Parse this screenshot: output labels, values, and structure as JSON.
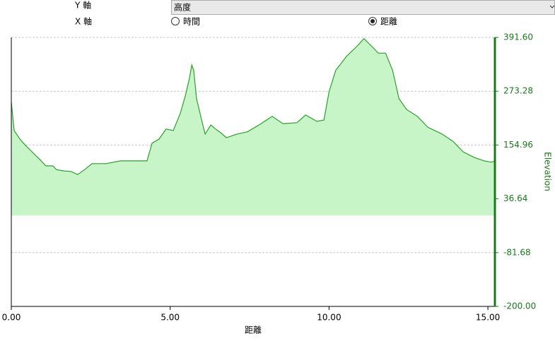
{
  "controls": {
    "y_axis_label": "Y 軸",
    "y_axis_value": "高度",
    "x_axis_label": "X 軸",
    "x_options": [
      {
        "label": "時間",
        "selected": false
      },
      {
        "label": "距離",
        "selected": true
      }
    ]
  },
  "chart_data": {
    "type": "area",
    "xlabel": "距離",
    "y2label": "Elevation",
    "x": [
      0,
      0.09,
      0.27,
      0.42,
      0.65,
      0.87,
      1.09,
      1.31,
      1.42,
      1.65,
      1.87,
      2.09,
      2.31,
      2.54,
      2.98,
      3.43,
      3.87,
      4.27,
      4.43,
      4.65,
      4.87,
      5.1,
      5.32,
      5.48,
      5.61,
      5.68,
      5.74,
      5.83,
      5.99,
      6.1,
      6.28,
      6.43,
      6.59,
      6.77,
      7.1,
      7.43,
      7.77,
      8.21,
      8.55,
      8.99,
      9.26,
      9.62,
      9.84,
      10.0,
      10.21,
      10.55,
      10.89,
      11.1,
      11.33,
      11.55,
      11.78,
      12.0,
      12.2,
      12.44,
      12.78,
      13.11,
      13.56,
      13.9,
      14.22,
      14.56,
      14.89,
      15.11,
      15.22
    ],
    "series": [
      {
        "color": "#2e9e2e",
        "fill": "#c8f5c8",
        "axis": "y2",
        "values": [
          249,
          187,
          168,
          156,
          140,
          125,
          109,
          109,
          101,
          98,
          97,
          90,
          101,
          114,
          114,
          120,
          120,
          120,
          159,
          168,
          190,
          187,
          225,
          264,
          303,
          331,
          319,
          257,
          210,
          179,
          199,
          190,
          182,
          171,
          179,
          184,
          198,
          218,
          202,
          204,
          221,
          207,
          210,
          272,
          319,
          350,
          373,
          389,
          373,
          357,
          357,
          319,
          257,
          233,
          218,
          194,
          179,
          163,
          140,
          128,
          120,
          117,
          120
        ]
      }
    ],
    "xlim": [
      0,
      15.22
    ],
    "xticks": [
      {
        "value": 0,
        "label": "0.00"
      },
      {
        "value": 5,
        "label": "5.00"
      },
      {
        "value": 10,
        "label": "10.00"
      },
      {
        "value": 15,
        "label": "15.00"
      }
    ],
    "y2lim": [
      -200,
      391.6
    ],
    "y2ticks": [
      {
        "value": 391.6,
        "label": "391.60"
      },
      {
        "value": 273.28,
        "label": "273.28"
      },
      {
        "value": 154.96,
        "label": "154.96"
      },
      {
        "value": 36.64,
        "label": "36.64"
      },
      {
        "value": -81.68,
        "label": "-81.68"
      },
      {
        "value": -200,
        "label": "-200.00"
      }
    ],
    "grid": true,
    "axis_color": "#1a7a1a"
  }
}
